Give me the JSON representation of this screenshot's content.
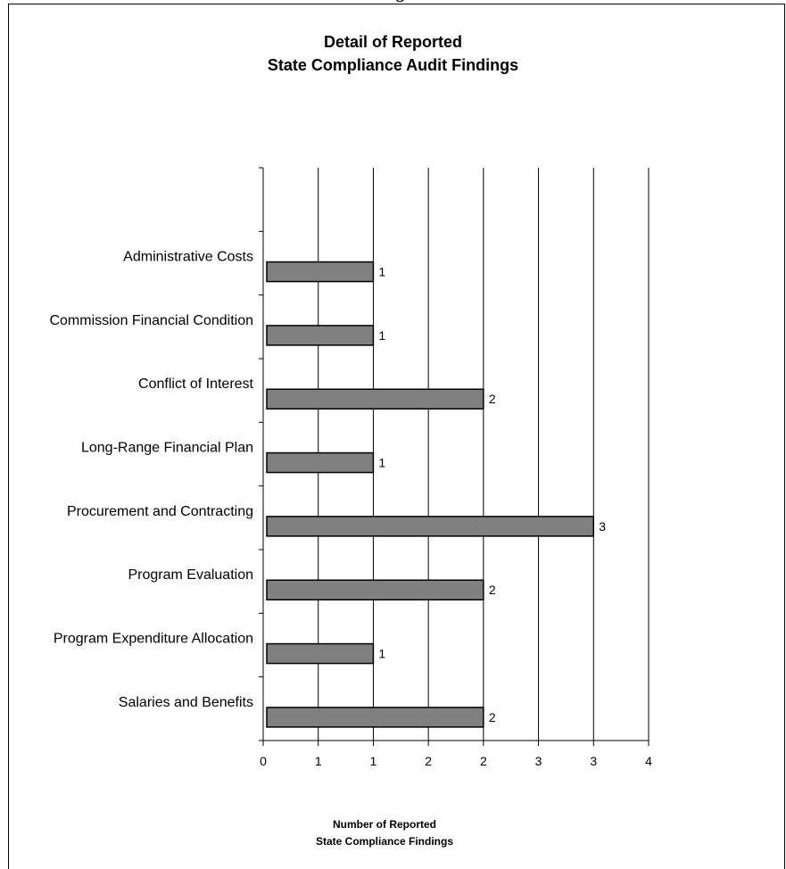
{
  "page": {
    "caption_fragment": "ing"
  },
  "chart_data": {
    "type": "bar",
    "orientation": "horizontal",
    "title": [
      "Detail of Reported",
      "State Compliance Audit Findings"
    ],
    "xlabel": [
      "Number of Reported",
      "State Compliance Findings"
    ],
    "ylabel": "",
    "categories": [
      "Administrative Costs",
      "Commission Financial Condition",
      "Conflict of Interest",
      "Long-Range Financial Plan",
      "Procurement and Contracting",
      "Program Evaluation",
      "Program Expenditure Allocation",
      "Salaries and Benefits"
    ],
    "values": [
      1,
      1,
      2,
      1,
      3,
      2,
      1,
      2
    ],
    "data_labels": [
      "1",
      "1",
      "2",
      "1",
      "3",
      "2",
      "1",
      "2"
    ],
    "xlim": [
      0,
      3.5
    ],
    "x_tick_labels": [
      "0",
      "1",
      "1",
      "2",
      "2",
      "3",
      "3",
      "4"
    ],
    "grid": "vertical",
    "legend": "none",
    "colors": {
      "bar_fill": "#808080",
      "bar_stroke": "#000000",
      "gridline": "#000000"
    }
  }
}
